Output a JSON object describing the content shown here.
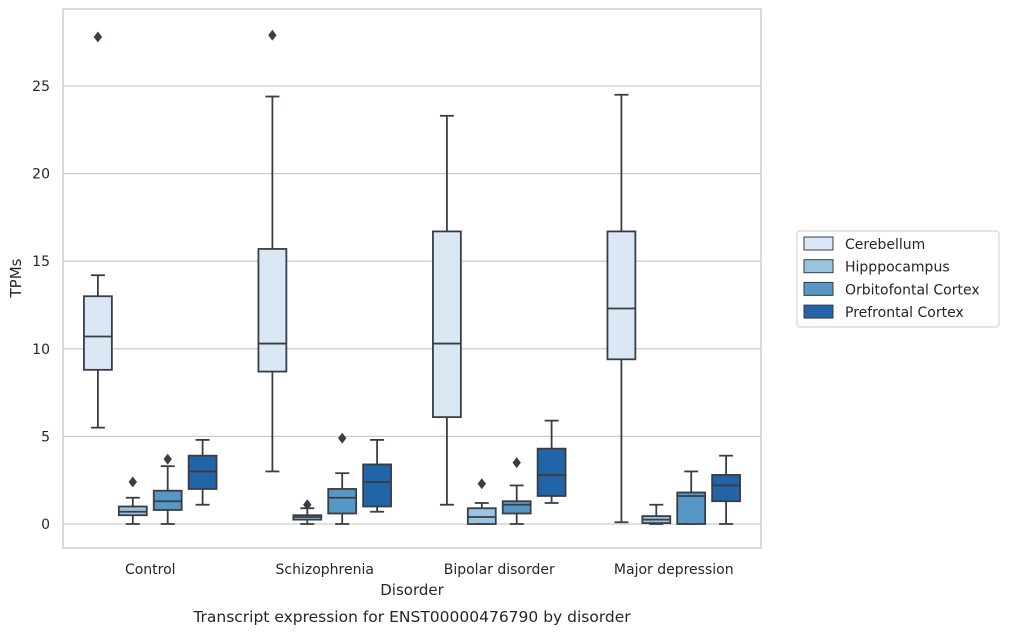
{
  "chart_data": {
    "type": "box",
    "title": "",
    "caption": "Transcript expression for ENST00000476790 by disorder",
    "xlabel": "Disorder",
    "ylabel": "TPMs",
    "ylim": [
      -1.3,
      29.0
    ],
    "yticks": [
      0,
      5,
      10,
      15,
      20,
      25
    ],
    "grid": "horizontal",
    "legend_placement": "right",
    "categories": [
      "Control",
      "Schizophrenia",
      "Bipolar disorder",
      "Major depression"
    ],
    "series": [
      {
        "name": "Cerebellum",
        "color": "#dae8f5",
        "boxes": [
          {
            "whisker_low": 5.5,
            "q1": 8.8,
            "median": 10.7,
            "q3": 13.0,
            "whisker_high": 14.2,
            "outliers": [
              27.8
            ]
          },
          {
            "whisker_low": 3.0,
            "q1": 8.7,
            "median": 10.3,
            "q3": 15.7,
            "whisker_high": 24.4,
            "outliers": [
              27.9
            ]
          },
          {
            "whisker_low": 1.1,
            "q1": 6.1,
            "median": 10.3,
            "q3": 16.7,
            "whisker_high": 23.3,
            "outliers": []
          },
          {
            "whisker_low": 0.1,
            "q1": 9.4,
            "median": 12.3,
            "q3": 16.7,
            "whisker_high": 24.5,
            "outliers": []
          }
        ]
      },
      {
        "name": "Hipppocampus",
        "color": "#99c3df",
        "boxes": [
          {
            "whisker_low": 0.0,
            "q1": 0.5,
            "median": 0.7,
            "q3": 1.0,
            "whisker_high": 1.5,
            "outliers": [
              2.4
            ]
          },
          {
            "whisker_low": 0.0,
            "q1": 0.25,
            "median": 0.4,
            "q3": 0.5,
            "whisker_high": 0.9,
            "outliers": [
              1.1
            ]
          },
          {
            "whisker_low": 0.0,
            "q1": 0.0,
            "median": 0.4,
            "q3": 0.9,
            "whisker_high": 1.2,
            "outliers": [
              2.3
            ]
          },
          {
            "whisker_low": 0.0,
            "q1": 0.05,
            "median": 0.25,
            "q3": 0.45,
            "whisker_high": 1.1,
            "outliers": []
          }
        ]
      },
      {
        "name": "Orbitofontal Cortex",
        "color": "#5697c5",
        "boxes": [
          {
            "whisker_low": 0.0,
            "q1": 0.8,
            "median": 1.3,
            "q3": 1.9,
            "whisker_high": 3.3,
            "outliers": [
              3.7
            ]
          },
          {
            "whisker_low": 0.0,
            "q1": 0.6,
            "median": 1.5,
            "q3": 2.0,
            "whisker_high": 2.9,
            "outliers": [
              4.9
            ]
          },
          {
            "whisker_low": 0.0,
            "q1": 0.6,
            "median": 1.1,
            "q3": 1.3,
            "whisker_high": 2.2,
            "outliers": [
              3.5
            ]
          },
          {
            "whisker_low": 0.0,
            "q1": 0.0,
            "median": 1.6,
            "q3": 1.8,
            "whisker_high": 3.0,
            "outliers": []
          }
        ]
      },
      {
        "name": "Prefrontal Cortex",
        "color": "#2164a8",
        "boxes": [
          {
            "whisker_low": 1.1,
            "q1": 2.0,
            "median": 3.0,
            "q3": 3.9,
            "whisker_high": 4.8,
            "outliers": []
          },
          {
            "whisker_low": 0.7,
            "q1": 1.0,
            "median": 2.4,
            "q3": 3.4,
            "whisker_high": 4.8,
            "outliers": []
          },
          {
            "whisker_low": 1.2,
            "q1": 1.6,
            "median": 2.8,
            "q3": 4.3,
            "whisker_high": 5.9,
            "outliers": []
          },
          {
            "whisker_low": 0.0,
            "q1": 1.3,
            "median": 2.2,
            "q3": 2.8,
            "whisker_high": 3.9,
            "outliers": []
          }
        ]
      }
    ],
    "colors": {
      "frame": "#cccccc",
      "grid": "#cccccc",
      "line": "#3a3d45",
      "text": "#262626"
    }
  }
}
